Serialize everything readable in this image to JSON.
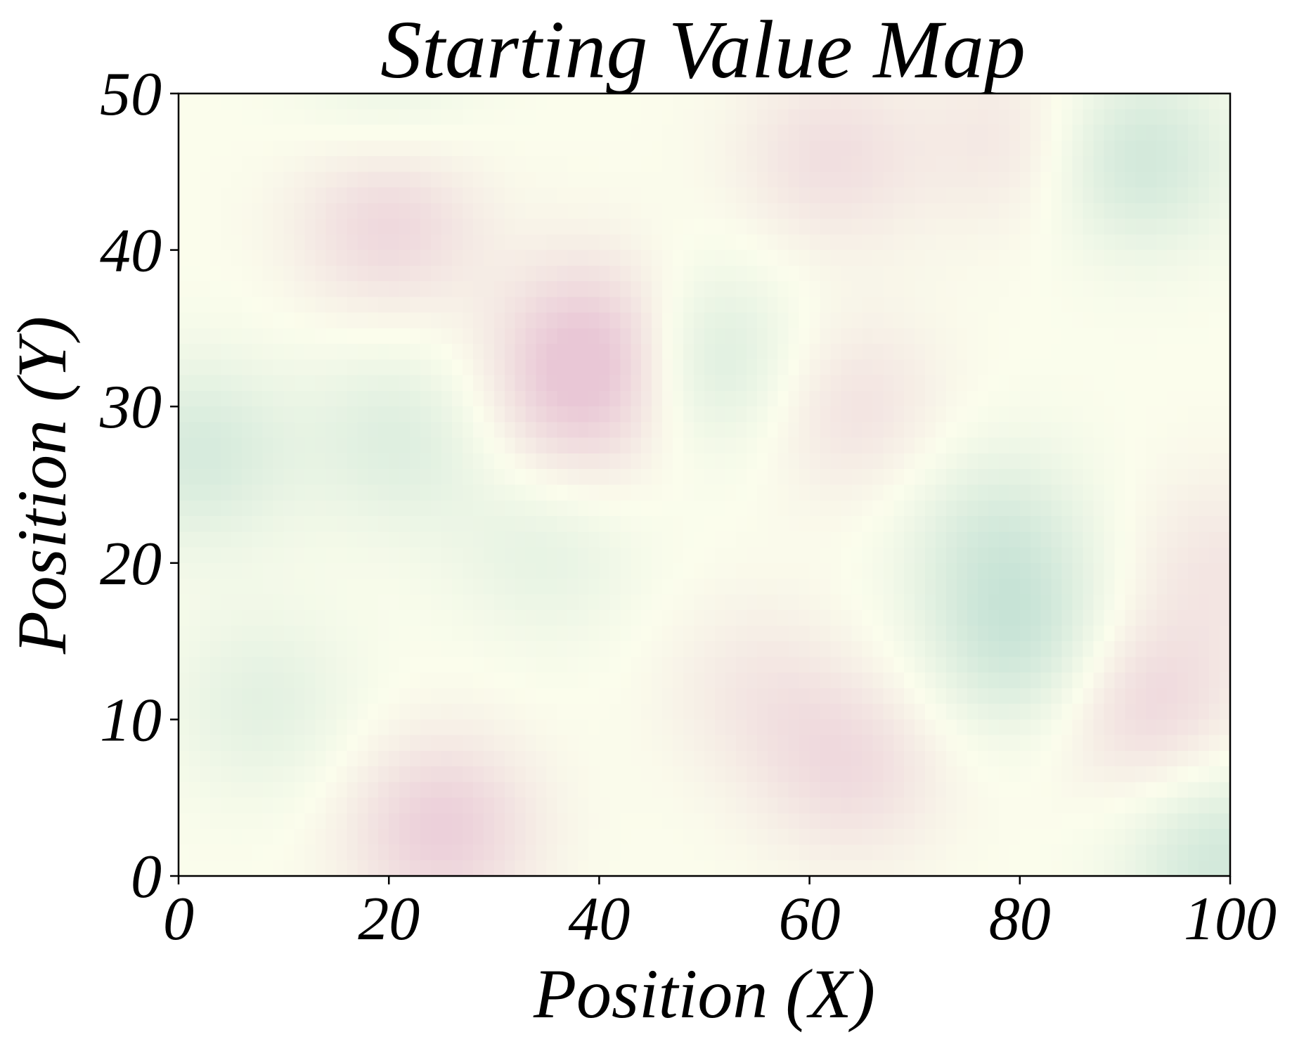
{
  "chart_data": {
    "type": "heatmap",
    "title": "Starting Value Map",
    "xlabel": "Position (X)",
    "ylabel": "Position (Y)",
    "xlim": [
      0,
      100
    ],
    "ylim": [
      0,
      50
    ],
    "xticks": [
      "0",
      "20",
      "40",
      "60",
      "80",
      "100"
    ],
    "yticks": [
      "0",
      "10",
      "20",
      "30",
      "40",
      "50"
    ],
    "grid": false,
    "colormap": {
      "low": "#c7e3d6",
      "mid": "#fbfdec",
      "high": "#e9c7d6"
    },
    "value_range": [
      -1,
      1
    ],
    "features": [
      {
        "x": 20,
        "y": 42,
        "value": 0.75
      },
      {
        "x": 40,
        "y": 34,
        "value": 0.85
      },
      {
        "x": 38,
        "y": 30,
        "value": 0.6
      },
      {
        "x": 62,
        "y": 46,
        "value": 0.55
      },
      {
        "x": 64,
        "y": 30,
        "value": 0.5
      },
      {
        "x": 80,
        "y": 47,
        "value": 0.45
      },
      {
        "x": 25,
        "y": 3,
        "value": 0.85
      },
      {
        "x": 64,
        "y": 7,
        "value": 0.6
      },
      {
        "x": 92,
        "y": 11,
        "value": 0.7
      },
      {
        "x": 99,
        "y": 20,
        "value": 0.4
      },
      {
        "x": 55,
        "y": 12,
        "value": 0.35
      },
      {
        "x": 91,
        "y": 46,
        "value": -0.85
      },
      {
        "x": 50,
        "y": 33,
        "value": -0.75
      },
      {
        "x": 80,
        "y": 15,
        "value": -0.85
      },
      {
        "x": 78,
        "y": 22,
        "value": -0.6
      },
      {
        "x": 2,
        "y": 27,
        "value": -0.7
      },
      {
        "x": 21,
        "y": 28,
        "value": -0.55
      },
      {
        "x": 8,
        "y": 11,
        "value": -0.45
      },
      {
        "x": 35,
        "y": 21,
        "value": -0.4
      },
      {
        "x": 20,
        "y": 49,
        "value": -0.35
      },
      {
        "x": 99,
        "y": 1,
        "value": -0.8
      }
    ]
  }
}
